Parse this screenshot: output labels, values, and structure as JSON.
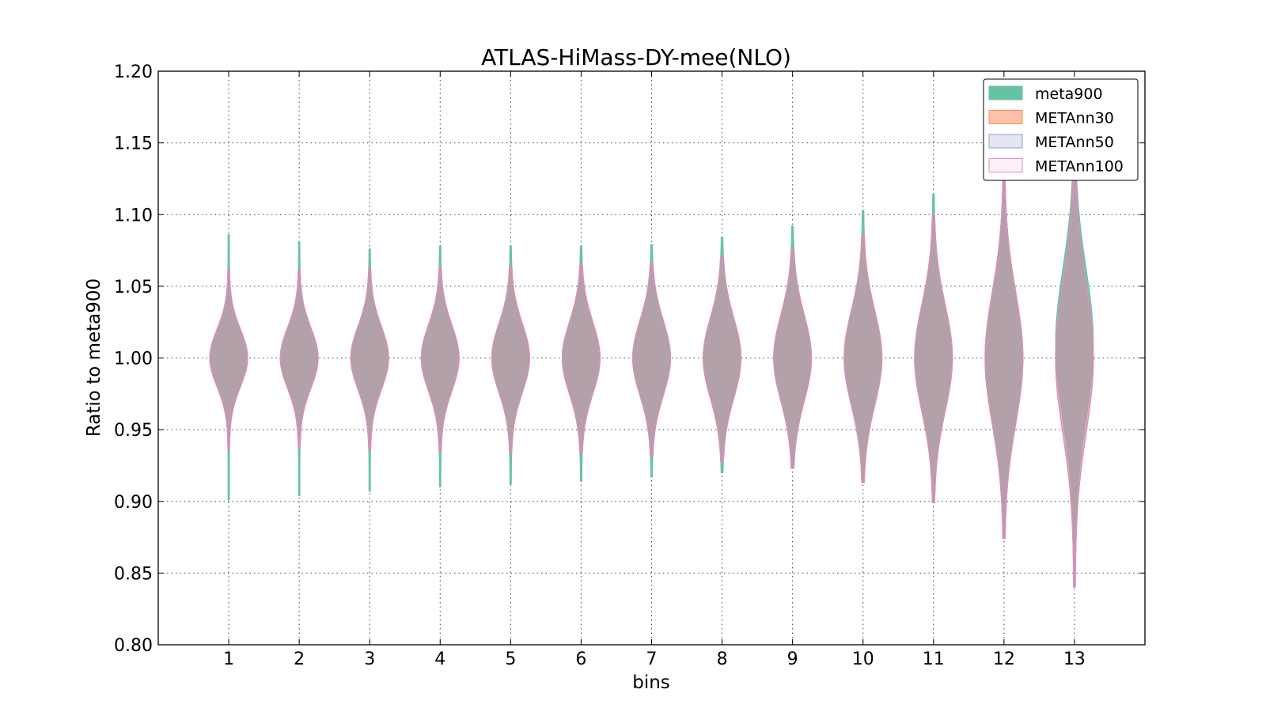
{
  "chart_data": {
    "type": "violin",
    "title": "ATLAS-HiMass-DY-mee(NLO)",
    "xlabel": "bins",
    "ylabel": "Ratio to meta900",
    "ylim": [
      0.8,
      1.2
    ],
    "yticks": [
      "0.80",
      "0.85",
      "0.90",
      "0.95",
      "1.00",
      "1.05",
      "1.10",
      "1.15",
      "1.20"
    ],
    "categories": [
      "1",
      "2",
      "3",
      "4",
      "5",
      "6",
      "7",
      "8",
      "9",
      "10",
      "11",
      "12",
      "13"
    ],
    "grid": true,
    "legend_position": "top-right",
    "series": [
      {
        "name": "meta900",
        "color": "#66c2a5",
        "center": [
          1.0,
          1.0,
          1.0,
          1.0,
          1.0,
          1.0,
          1.0,
          1.0,
          1.0,
          1.0,
          1.0,
          1.0,
          1.01
        ],
        "min": [
          0.901,
          0.904,
          0.907,
          0.91,
          0.912,
          0.914,
          0.917,
          0.92,
          0.923,
          0.913,
          0.899,
          0.874,
          0.84
        ],
        "max": [
          1.086,
          1.081,
          1.076,
          1.078,
          1.078,
          1.078,
          1.079,
          1.084,
          1.092,
          1.103,
          1.114,
          1.133,
          1.145
        ],
        "spread": [
          0.02,
          0.021,
          0.022,
          0.023,
          0.024,
          0.025,
          0.026,
          0.028,
          0.03,
          0.033,
          0.037,
          0.046,
          0.052
        ]
      },
      {
        "name": "METAnn30",
        "color": "#fc8d62",
        "center": [
          1.0,
          1.0,
          1.0,
          1.0,
          1.0,
          1.0,
          1.0,
          1.0,
          1.0,
          1.0,
          1.0,
          1.0,
          1.0
        ],
        "min": [
          0.936,
          0.937,
          0.936,
          0.935,
          0.934,
          0.934,
          0.932,
          0.928,
          0.923,
          0.913,
          0.899,
          0.874,
          0.84
        ],
        "max": [
          1.062,
          1.061,
          1.062,
          1.063,
          1.064,
          1.065,
          1.066,
          1.07,
          1.076,
          1.086,
          1.1,
          1.128,
          1.145
        ],
        "spread": [
          0.02,
          0.021,
          0.022,
          0.023,
          0.024,
          0.025,
          0.026,
          0.028,
          0.03,
          0.033,
          0.037,
          0.046,
          0.052
        ]
      },
      {
        "name": "METAnn50",
        "color": "#8da0cb",
        "center": [
          1.0,
          1.0,
          1.0,
          1.0,
          1.0,
          1.0,
          1.0,
          1.0,
          1.0,
          1.0,
          1.0,
          1.0,
          1.0
        ],
        "min": [
          0.936,
          0.937,
          0.936,
          0.935,
          0.934,
          0.934,
          0.932,
          0.928,
          0.923,
          0.913,
          0.899,
          0.874,
          0.84
        ],
        "max": [
          1.062,
          1.061,
          1.062,
          1.063,
          1.064,
          1.065,
          1.066,
          1.07,
          1.076,
          1.086,
          1.1,
          1.128,
          1.145
        ],
        "spread": [
          0.02,
          0.021,
          0.022,
          0.023,
          0.024,
          0.025,
          0.026,
          0.028,
          0.03,
          0.033,
          0.037,
          0.046,
          0.052
        ]
      },
      {
        "name": "METAnn100",
        "color": "#e78ac3",
        "center": [
          1.0,
          1.0,
          1.0,
          1.0,
          1.0,
          1.0,
          1.0,
          1.0,
          1.0,
          1.0,
          1.0,
          1.0,
          1.0
        ],
        "min": [
          0.936,
          0.937,
          0.936,
          0.935,
          0.934,
          0.934,
          0.932,
          0.928,
          0.923,
          0.913,
          0.899,
          0.874,
          0.84
        ],
        "max": [
          1.062,
          1.061,
          1.062,
          1.063,
          1.064,
          1.065,
          1.066,
          1.07,
          1.076,
          1.086,
          1.1,
          1.128,
          1.145
        ],
        "spread": [
          0.02,
          0.021,
          0.022,
          0.023,
          0.024,
          0.025,
          0.026,
          0.028,
          0.03,
          0.033,
          0.037,
          0.046,
          0.052
        ]
      }
    ]
  }
}
